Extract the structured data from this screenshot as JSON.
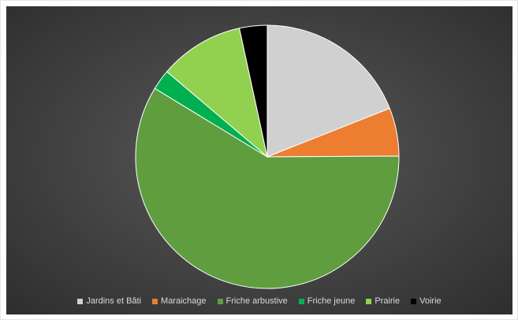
{
  "chart_data": {
    "type": "pie",
    "title": "",
    "start_angle_deg": 0,
    "direction": "clockwise",
    "legend_position": "bottom",
    "slices": [
      {
        "label": "Jardins et Bâti",
        "value": 19.0,
        "color": "#d0d0d0"
      },
      {
        "label": "Maraichage",
        "value": 5.9,
        "color": "#ed7d31"
      },
      {
        "label": "Friche arbustive",
        "value": 58.8,
        "color": "#5f9d3e"
      },
      {
        "label": "Friche jeune",
        "value": 2.5,
        "color": "#00b050"
      },
      {
        "label": "Prairie",
        "value": 10.4,
        "color": "#92d050"
      },
      {
        "label": "Voirie",
        "value": 3.4,
        "color": "#000000"
      }
    ]
  }
}
